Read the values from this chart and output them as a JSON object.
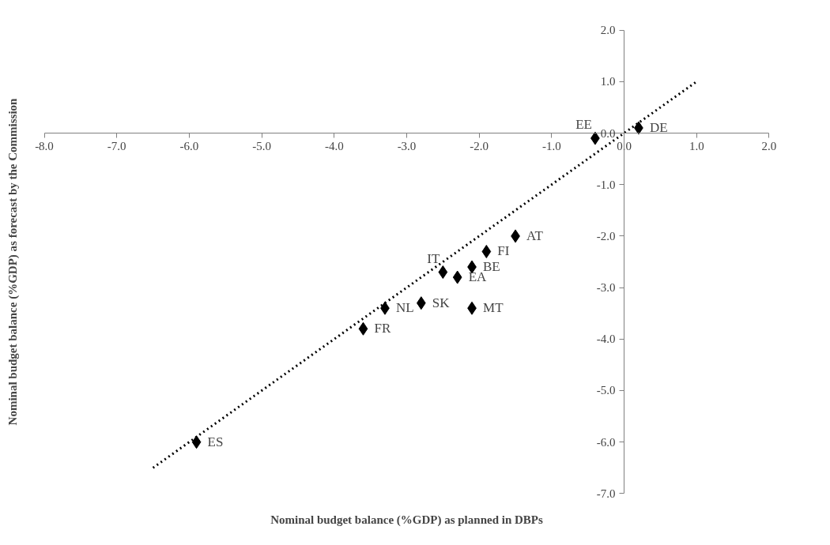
{
  "chart_data": {
    "type": "scatter",
    "xlabel": "Nominal budget balance (%GDP) as planned in DBPs",
    "ylabel": "Nominal budget balance (%GDP) as forecast by the Commission",
    "xlim": [
      -8,
      2
    ],
    "ylim": [
      -7,
      2
    ],
    "xticks": [
      {
        "value": -8,
        "label": "-8.0"
      },
      {
        "value": -7,
        "label": "-7.0"
      },
      {
        "value": -6,
        "label": "-6.0"
      },
      {
        "value": -5,
        "label": "-5.0"
      },
      {
        "value": -4,
        "label": "-4.0"
      },
      {
        "value": -3,
        "label": "-3.0"
      },
      {
        "value": -2,
        "label": "-2.0"
      },
      {
        "value": -1,
        "label": "-1.0"
      },
      {
        "value": 0,
        "label": "0.0"
      },
      {
        "value": 1,
        "label": "1.0"
      },
      {
        "value": 2,
        "label": "2.0"
      }
    ],
    "yticks": [
      {
        "value": -7,
        "label": "-7.0"
      },
      {
        "value": -6,
        "label": "-6.0"
      },
      {
        "value": -5,
        "label": "-5.0"
      },
      {
        "value": -4,
        "label": "-4.0"
      },
      {
        "value": -3,
        "label": "-3.0"
      },
      {
        "value": -2,
        "label": "-2.0"
      },
      {
        "value": -1,
        "label": "-1.0"
      },
      {
        "value": 0,
        "label": "0.0"
      },
      {
        "value": 1,
        "label": "1.0"
      },
      {
        "value": 2,
        "label": "2.0"
      }
    ],
    "grid": false,
    "marker": "diamond",
    "series": [
      {
        "color": "#000000",
        "x": [
          0.2,
          -0.4,
          -1.5,
          -1.9,
          -2.1,
          -2.5,
          -2.3,
          -2.8,
          -3.3,
          -2.1,
          -3.6,
          -5.9
        ],
        "values": [
          0.1,
          -0.1,
          -2.0,
          -2.3,
          -2.6,
          -2.7,
          -2.8,
          -3.3,
          -3.4,
          -3.4,
          -3.8,
          -6.0
        ]
      },
      {
        "type": "line",
        "color": "#000000",
        "line_style": "dotted",
        "marker": "none",
        "x": [
          -6.5,
          1.0
        ],
        "values": [
          -6.5,
          1.0
        ]
      }
    ],
    "annotations": [
      {
        "text": "DE",
        "x": 0.2,
        "y": 0.1
      },
      {
        "text": "EE",
        "x": -0.4,
        "y": -0.1
      },
      {
        "text": "AT",
        "x": -1.5,
        "y": -2.0
      },
      {
        "text": "FI",
        "x": -1.9,
        "y": -2.3
      },
      {
        "text": "BE",
        "x": -2.1,
        "y": -2.6
      },
      {
        "text": "IT",
        "x": -2.5,
        "y": -2.7
      },
      {
        "text": "EA",
        "x": -2.3,
        "y": -2.8
      },
      {
        "text": "SK",
        "x": -2.8,
        "y": -3.3
      },
      {
        "text": "NL",
        "x": -3.3,
        "y": -3.4
      },
      {
        "text": "MT",
        "x": -2.1,
        "y": -3.4
      },
      {
        "text": "FR",
        "x": -3.6,
        "y": -3.8
      },
      {
        "text": "ES",
        "x": -5.9,
        "y": -6.0
      }
    ]
  }
}
